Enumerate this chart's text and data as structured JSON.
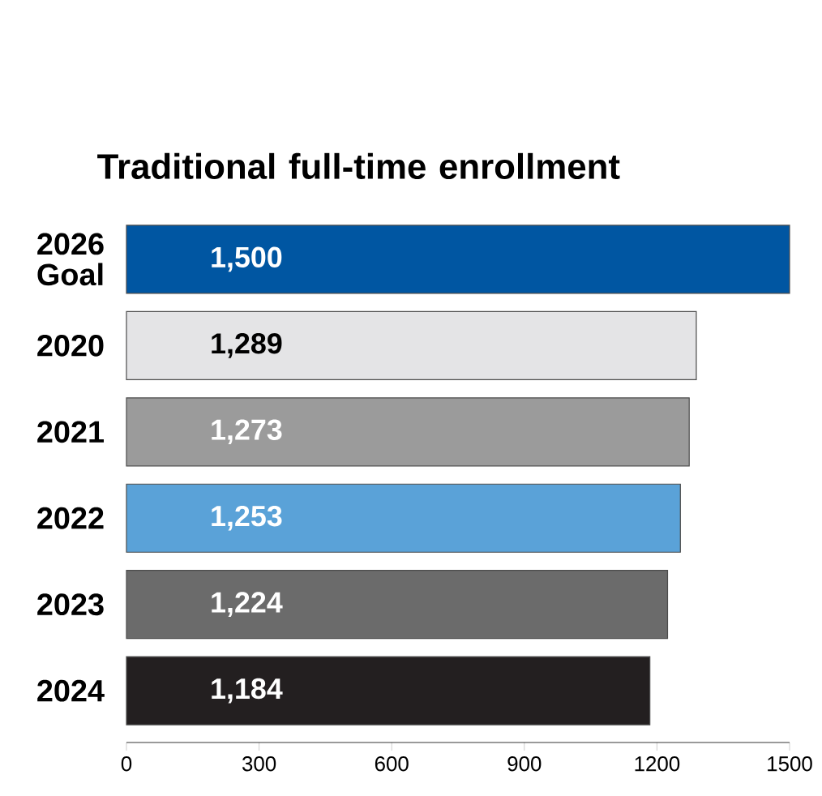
{
  "chart_data": {
    "type": "bar",
    "orientation": "horizontal",
    "title": "Traditional full-time enrollment",
    "categories": [
      "2026 Goal",
      "2020",
      "2021",
      "2022",
      "2023",
      "2024"
    ],
    "values": [
      1500,
      1289,
      1273,
      1253,
      1224,
      1184
    ],
    "value_labels": [
      "1,500",
      "1,289",
      "1,273",
      "1,253",
      "1,224",
      "1,184"
    ],
    "colors": [
      "#0056a2",
      "#e4e4e6",
      "#9b9b9b",
      "#5aa2d8",
      "#6b6b6b",
      "#231f20"
    ],
    "xlim": [
      0,
      1500
    ],
    "xticks": [
      0,
      300,
      600,
      900,
      1200,
      1500
    ],
    "grid": false
  }
}
